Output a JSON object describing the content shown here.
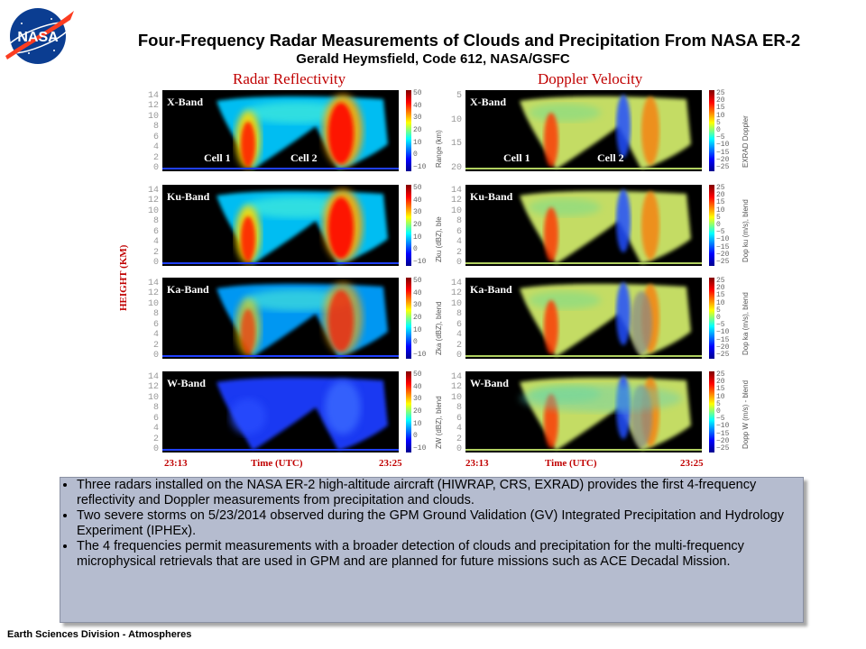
{
  "header": {
    "logo_text": "NASA",
    "title": "Four-Frequency Radar Measurements of Clouds and Precipitation From NASA ER-2",
    "subtitle": "Gerald Heymsfield, Code 612, NASA/GSFC"
  },
  "figure": {
    "left_title": "Radar Reflectivity",
    "right_title": "Doppler Velocity",
    "y_axis_label": "HEIGHT (KM)",
    "height_ticks": [
      "14",
      "12",
      "10",
      "8",
      "6",
      "4",
      "2",
      "0"
    ],
    "range_ticks": [
      "5",
      "10",
      "15",
      "20"
    ],
    "time_start": "23:13",
    "time_end": "23:25",
    "time_label": "Time (UTC)",
    "cell_labels": [
      "Cell 1",
      "Cell 2"
    ],
    "reflectivity_scale": [
      "50",
      "40",
      "30",
      "20",
      "10",
      "0",
      "−10"
    ],
    "doppler_scale": [
      "25",
      "20",
      "15",
      "10",
      "5",
      "0",
      "−5",
      "−10",
      "−15",
      "−20",
      "−25"
    ],
    "rows": [
      {
        "band": "X-Band",
        "refl_label": "Range (km)",
        "dop_label": "EXRAD Doppler"
      },
      {
        "band": "Ku-Band",
        "refl_label": "Zku (dBZ), ble",
        "dop_label": "Dop ku (m/s), blend"
      },
      {
        "band": "Ka-Band",
        "refl_label": "Zka (dBZ), blend",
        "dop_label": "Dop ka (m/s), blend"
      },
      {
        "band": "W-Band",
        "refl_label": "ZW (dBZ), blend",
        "dop_label": "Dopp W (m/s) - blend"
      }
    ]
  },
  "bullets": [
    "Three radars installed on the NASA ER-2 high-altitude aircraft (HIWRAP, CRS, EXRAD) provides the first 4-frequency reflectivity and Doppler measurements from precipitation and clouds.",
    "Two severe storms on 5/23/2014 observed during the GPM Ground Validation (GV)  Integrated Precipitation and Hydrology Experiment (IPHEx).",
    "The 4 frequencies permit measurements with a broader detection of clouds and precipitation for the multi-frequency microphysical retrievals that are used in GPM and are planned for future missions such as ACE Decadal Mission."
  ],
  "footer": "Earth Sciences Division - Atmospheres"
}
